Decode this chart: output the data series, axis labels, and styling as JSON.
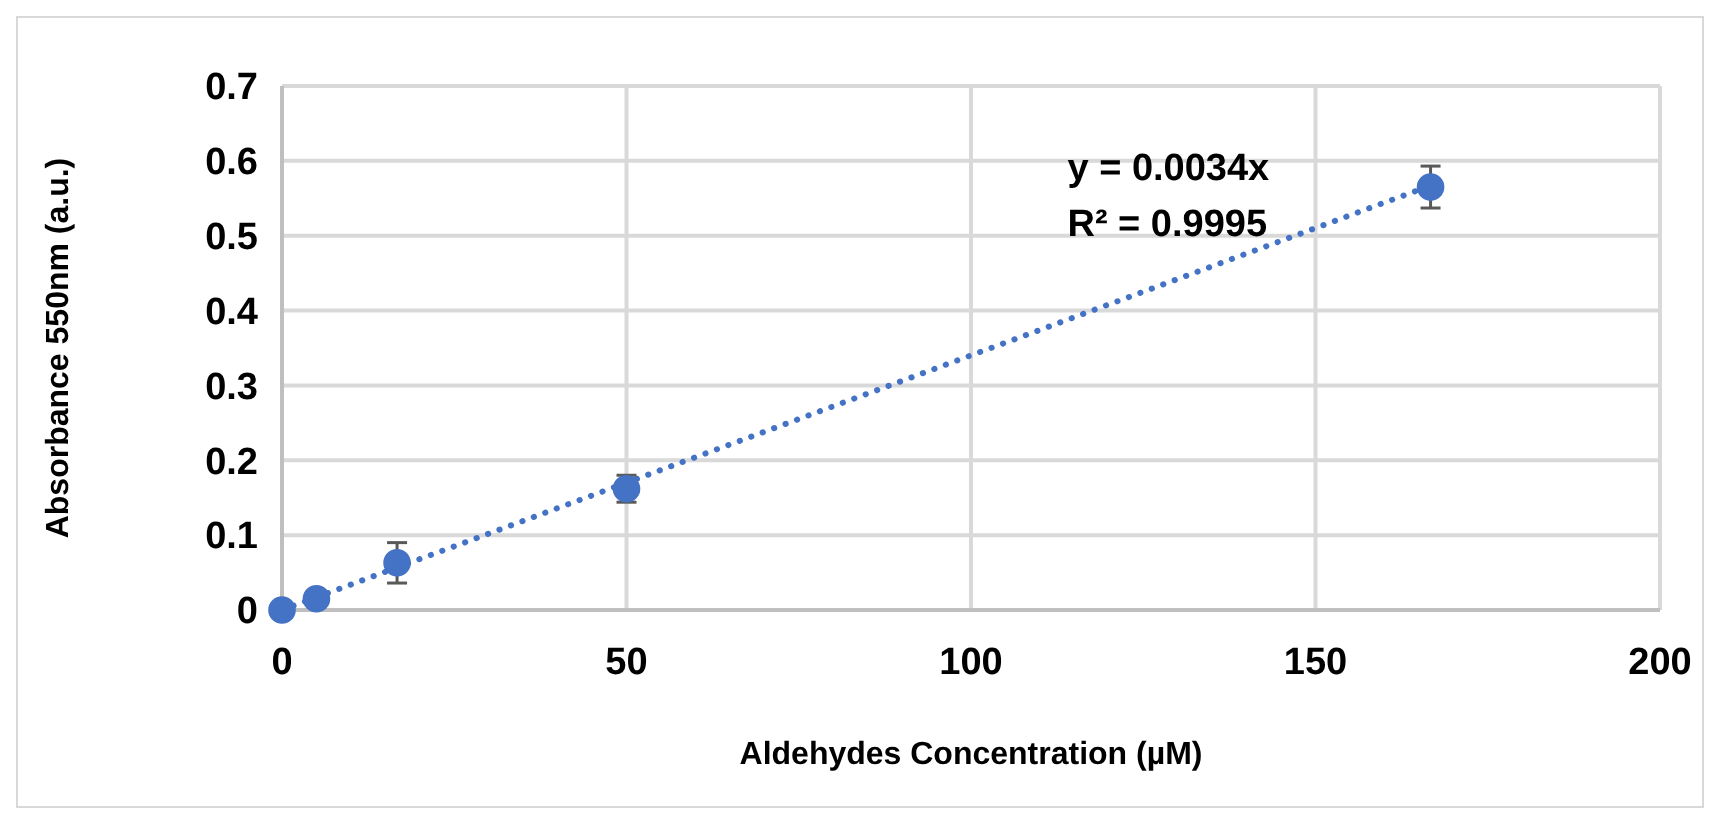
{
  "chart_data": {
    "type": "scatter",
    "xlabel": "Aldehydes Concentration (µM)",
    "ylabel": "Absorbance 550nm (a.u.)",
    "xlim": [
      0,
      200
    ],
    "xticks": [
      0,
      50,
      100,
      150,
      200
    ],
    "ylim": [
      0,
      0.7
    ],
    "yticks": [
      0,
      0.1,
      0.2,
      0.3,
      0.4,
      0.5,
      0.6,
      0.7
    ],
    "grid": true,
    "marker": "circle",
    "annotations": [
      "y = 0.0034x",
      "R² = 0.9995"
    ],
    "series": [
      {
        "color": "#4472c4",
        "x": [
          0,
          5,
          16.7,
          50,
          166.7
        ],
        "values": [
          0,
          0.015,
          0.063,
          0.162,
          0.565
        ],
        "errors": [
          null,
          null,
          0.027,
          0.018,
          0.028
        ]
      },
      {
        "type": "line",
        "color": "#4472c4",
        "line_style": "dotted",
        "marker": "none",
        "x": [
          0,
          166.7
        ],
        "values": [
          0,
          0.567
        ]
      }
    ]
  }
}
